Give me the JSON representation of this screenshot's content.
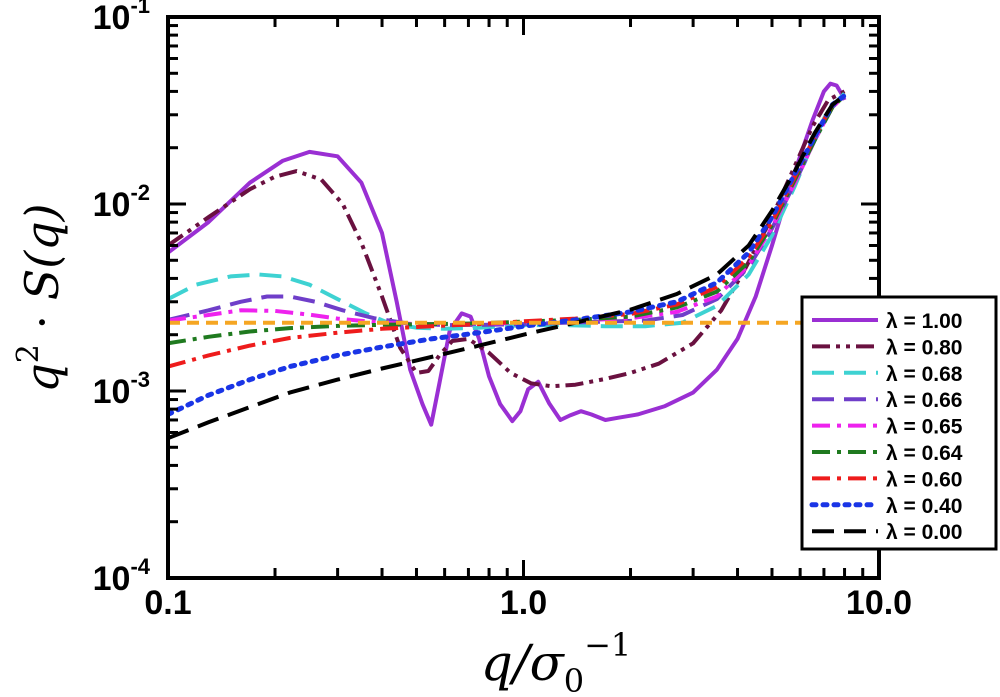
{
  "chart_data": {
    "type": "line",
    "title": "",
    "xlabel": "q/σ₀⁻¹",
    "ylabel": "q²·S(q)",
    "xscale": "log",
    "yscale": "log",
    "xlim": [
      0.1,
      10.0
    ],
    "ylim": [
      0.0001,
      0.1
    ],
    "grid": false,
    "legend_position": "right",
    "x_ticks": [
      {
        "value": 0.1,
        "label": "0.1"
      },
      {
        "value": 1.0,
        "label": "1.0"
      },
      {
        "value": 10.0,
        "label": "10.0"
      }
    ],
    "y_ticks": [
      {
        "value": 0.0001,
        "base": "10",
        "exp": "-4"
      },
      {
        "value": 0.001,
        "base": "10",
        "exp": "-3"
      },
      {
        "value": 0.01,
        "base": "10",
        "exp": "-2"
      },
      {
        "value": 0.1,
        "base": "10",
        "exp": "-1"
      }
    ],
    "series": [
      {
        "name": "λ = 1.00",
        "color": "#9a2fd3",
        "dash": "solid",
        "x": [
          0.1,
          0.13,
          0.17,
          0.21,
          0.25,
          0.3,
          0.35,
          0.4,
          0.44,
          0.48,
          0.52,
          0.55,
          0.58,
          0.62,
          0.67,
          0.71,
          0.75,
          0.8,
          0.86,
          0.93,
          0.98,
          1.03,
          1.1,
          1.18,
          1.27,
          1.35,
          1.45,
          1.55,
          1.7,
          1.85,
          2.1,
          2.5,
          3.0,
          3.5,
          4.0,
          4.5,
          5.0,
          5.5,
          6.0,
          6.5,
          7.0,
          7.3,
          7.6,
          7.9,
          8.0
        ],
        "y": [
          0.0055,
          0.008,
          0.013,
          0.017,
          0.019,
          0.018,
          0.013,
          0.007,
          0.003,
          0.0013,
          0.00085,
          0.00066,
          0.0011,
          0.0021,
          0.0026,
          0.0025,
          0.0019,
          0.0012,
          0.00085,
          0.00069,
          0.00078,
          0.00102,
          0.00112,
          0.00086,
          0.0007,
          0.00074,
          0.00078,
          0.00075,
          0.0007,
          0.00072,
          0.00075,
          0.00083,
          0.00098,
          0.0013,
          0.0019,
          0.0032,
          0.006,
          0.011,
          0.018,
          0.028,
          0.04,
          0.044,
          0.043,
          0.038,
          0.036
        ]
      },
      {
        "name": "λ = 0.80",
        "color": "#6a1140",
        "dash": "dashdotdot",
        "x": [
          0.1,
          0.13,
          0.17,
          0.2,
          0.23,
          0.27,
          0.31,
          0.35,
          0.4,
          0.45,
          0.5,
          0.54,
          0.58,
          0.63,
          0.7,
          0.8,
          0.92,
          1.05,
          1.2,
          1.4,
          1.7,
          2.0,
          2.4,
          3.0,
          3.6,
          4.2,
          5.0,
          5.8,
          6.5,
          7.2,
          8.0
        ],
        "y": [
          0.006,
          0.0085,
          0.012,
          0.014,
          0.015,
          0.0135,
          0.01,
          0.0062,
          0.0032,
          0.0017,
          0.00125,
          0.00128,
          0.00155,
          0.00185,
          0.0019,
          0.0016,
          0.00125,
          0.0011,
          0.00106,
          0.00108,
          0.00116,
          0.00125,
          0.0014,
          0.0018,
          0.0027,
          0.0045,
          0.0085,
          0.016,
          0.026,
          0.036,
          0.04
        ]
      },
      {
        "name": "λ = 0.68",
        "color": "#3ed2d2",
        "dash": "longdash",
        "x": [
          0.1,
          0.12,
          0.15,
          0.18,
          0.21,
          0.25,
          0.3,
          0.36,
          0.42,
          0.5,
          0.6,
          0.75,
          1.0,
          1.3,
          1.7,
          2.2,
          2.8,
          3.5,
          4.3,
          5.0,
          5.8,
          6.5,
          7.2,
          8.0
        ],
        "y": [
          0.0031,
          0.0037,
          0.0041,
          0.0042,
          0.0041,
          0.0037,
          0.0031,
          0.0026,
          0.0023,
          0.00218,
          0.00215,
          0.00218,
          0.00225,
          0.00225,
          0.00222,
          0.00222,
          0.00232,
          0.00285,
          0.0042,
          0.0068,
          0.0125,
          0.021,
          0.032,
          0.039
        ]
      },
      {
        "name": "λ = 0.66",
        "color": "#6f3ec9",
        "dash": "longdash",
        "x": [
          0.1,
          0.13,
          0.16,
          0.19,
          0.22,
          0.26,
          0.31,
          0.38,
          0.47,
          0.6,
          0.8,
          1.0,
          1.3,
          1.7,
          2.2,
          2.8,
          3.5,
          4.3,
          5.0,
          5.8,
          6.6,
          7.4,
          8.0
        ],
        "y": [
          0.0024,
          0.0027,
          0.003,
          0.0032,
          0.0032,
          0.003,
          0.0027,
          0.00245,
          0.0023,
          0.00225,
          0.00226,
          0.00228,
          0.00232,
          0.00235,
          0.00238,
          0.00255,
          0.0031,
          0.0046,
          0.0074,
          0.013,
          0.022,
          0.033,
          0.038
        ]
      },
      {
        "name": "λ = 0.65",
        "color": "#ee22ee",
        "dash": "dashdot",
        "x": [
          0.1,
          0.13,
          0.16,
          0.2,
          0.25,
          0.3,
          0.4,
          0.5,
          0.7,
          1.0,
          1.4,
          2.0,
          2.7,
          3.5,
          4.3,
          5.0,
          5.8,
          6.6,
          7.4,
          8.0
        ],
        "y": [
          0.00238,
          0.00255,
          0.0027,
          0.00268,
          0.00256,
          0.00244,
          0.00232,
          0.00228,
          0.00228,
          0.00232,
          0.00238,
          0.00245,
          0.00265,
          0.0032,
          0.0047,
          0.0075,
          0.013,
          0.022,
          0.033,
          0.038
        ]
      },
      {
        "name": "λ = 0.64",
        "color": "#1f7a1f",
        "dash": "dashdot",
        "x": [
          0.1,
          0.13,
          0.17,
          0.22,
          0.3,
          0.4,
          0.55,
          0.75,
          1.0,
          1.4,
          2.0,
          2.7,
          3.5,
          4.3,
          5.0,
          5.8,
          6.6,
          7.4,
          8.0
        ],
        "y": [
          0.0018,
          0.00195,
          0.00208,
          0.00217,
          0.00223,
          0.00226,
          0.00228,
          0.0023,
          0.00235,
          0.0024,
          0.0025,
          0.0028,
          0.0034,
          0.0049,
          0.0077,
          0.0135,
          0.022,
          0.033,
          0.038
        ]
      },
      {
        "name": "λ = 0.60",
        "color": "#ee1c1c",
        "dash": "dashdot",
        "x": [
          0.1,
          0.13,
          0.17,
          0.22,
          0.3,
          0.4,
          0.55,
          0.75,
          1.0,
          1.4,
          2.0,
          2.7,
          3.5,
          4.3,
          5.0,
          5.8,
          6.6,
          7.4,
          8.0
        ],
        "y": [
          0.00135,
          0.00155,
          0.00175,
          0.00192,
          0.00205,
          0.00215,
          0.00222,
          0.00228,
          0.00236,
          0.00244,
          0.00258,
          0.0029,
          0.0036,
          0.0052,
          0.008,
          0.014,
          0.023,
          0.034,
          0.038
        ]
      },
      {
        "name": "λ = 0.40",
        "color": "#1a35e6",
        "dash": "dotted",
        "x": [
          0.1,
          0.13,
          0.17,
          0.22,
          0.3,
          0.4,
          0.55,
          0.75,
          1.0,
          1.4,
          2.0,
          2.7,
          3.5,
          4.3,
          5.0,
          5.8,
          6.6,
          7.4,
          8.0
        ],
        "y": [
          0.00075,
          0.00095,
          0.00115,
          0.00135,
          0.00155,
          0.00172,
          0.0019,
          0.00205,
          0.00222,
          0.0024,
          0.00265,
          0.003,
          0.0038,
          0.0055,
          0.0085,
          0.0145,
          0.023,
          0.034,
          0.038
        ]
      },
      {
        "name": "λ = 0.00",
        "color": "#000000",
        "dash": "longdash",
        "x": [
          0.1,
          0.13,
          0.17,
          0.22,
          0.3,
          0.4,
          0.55,
          0.75,
          1.0,
          1.4,
          2.0,
          2.7,
          3.5,
          4.3,
          5.0,
          5.8,
          6.6,
          7.4,
          8.0
        ],
        "y": [
          0.00056,
          0.00068,
          0.00082,
          0.00098,
          0.00115,
          0.00132,
          0.00152,
          0.00175,
          0.002,
          0.00232,
          0.00272,
          0.0033,
          0.0042,
          0.006,
          0.0092,
          0.015,
          0.024,
          0.034,
          0.038
        ]
      },
      {
        "name": "",
        "color": "#f5a623",
        "dash": "shortdash",
        "legend": false,
        "x": [
          0.1,
          0.2,
          0.4,
          0.7,
          1.0,
          2.0,
          4.0,
          6.0,
          7.6
        ],
        "y": [
          0.00232,
          0.00232,
          0.00232,
          0.00232,
          0.00232,
          0.00232,
          0.00232,
          0.00232,
          0.00232
        ]
      }
    ]
  }
}
